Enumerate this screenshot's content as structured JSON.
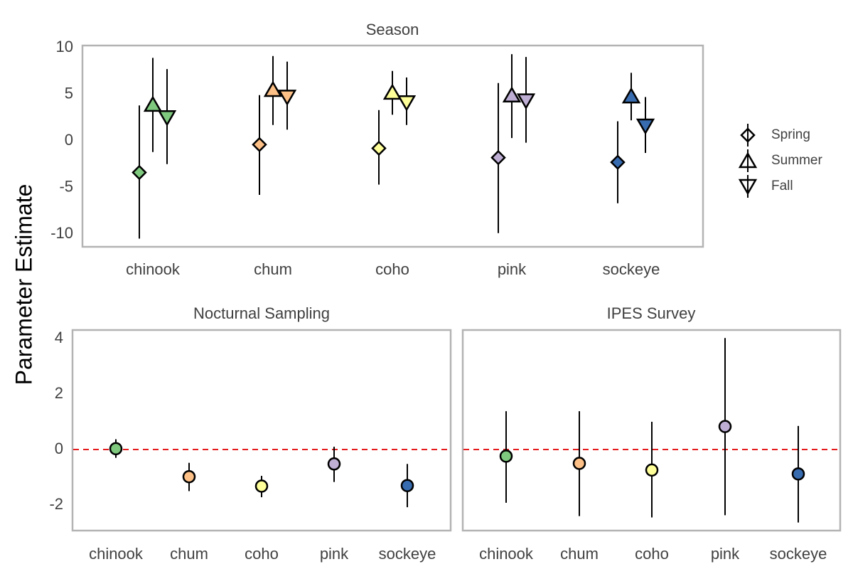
{
  "colors": {
    "chinook": "#7fc97f",
    "chum": "#fdc086",
    "coho": "#ffff99",
    "pink": "#beaed4",
    "sockeye": "#386cb0",
    "reference_line": "#e41a1c"
  },
  "ylabel": "Parameter Estimate",
  "legend": {
    "items": [
      "Spring",
      "Summer",
      "Fall"
    ]
  },
  "chart_data": [
    {
      "type": "scatter",
      "title": "Season",
      "categories": [
        "chinook",
        "chum",
        "coho",
        "pink",
        "sockeye"
      ],
      "ylim": [
        -11.5,
        10
      ],
      "yticks": [
        10,
        5,
        0,
        -5,
        -10
      ],
      "ytick_labels": [
        "10",
        "5",
        "0",
        "-5",
        "-10"
      ],
      "grid": false,
      "legend_position": "right",
      "series": [
        {
          "name": "Spring",
          "marker": "diamond",
          "values": [
            -3.4,
            -0.4,
            -0.8,
            -1.8,
            -2.3
          ],
          "lower": [
            -10.5,
            -5.8,
            -4.7,
            -9.9,
            -6.7
          ],
          "upper": [
            3.8,
            4.9,
            3.3,
            6.2,
            2.1
          ]
        },
        {
          "name": "Summer",
          "marker": "triangle-up",
          "values": [
            3.9,
            5.5,
            5.2,
            4.9,
            4.8
          ],
          "lower": [
            -1.2,
            1.7,
            2.8,
            0.3,
            2.2
          ],
          "upper": [
            8.9,
            9.1,
            7.5,
            9.3,
            7.3
          ]
        },
        {
          "name": "Fall",
          "marker": "triangle-down",
          "values": [
            2.5,
            4.7,
            4.1,
            4.3,
            1.6
          ],
          "lower": [
            -2.5,
            1.2,
            1.7,
            -0.2,
            -1.3
          ],
          "upper": [
            7.7,
            8.5,
            6.8,
            9.0,
            4.7
          ]
        }
      ]
    },
    {
      "type": "scatter",
      "title": "Nocturnal Sampling",
      "categories": [
        "chinook",
        "chum",
        "coho",
        "pink",
        "sockeye"
      ],
      "ylim": [
        -2.9,
        4.2
      ],
      "yticks": [
        4,
        2,
        0,
        -2
      ],
      "ytick_labels": [
        "4",
        "2",
        "0",
        "-2"
      ],
      "reference_line": 0,
      "values": [
        0.03,
        -0.98,
        -1.32,
        -0.52,
        -1.3
      ],
      "lower": [
        -0.3,
        -1.5,
        -1.72,
        -1.17,
        -2.08
      ],
      "upper": [
        0.37,
        -0.48,
        -0.95,
        0.1,
        -0.52
      ]
    },
    {
      "type": "scatter",
      "title": "IPES Survey",
      "categories": [
        "chinook",
        "chum",
        "coho",
        "pink",
        "sockeye"
      ],
      "ylim": [
        -2.9,
        4.2
      ],
      "reference_line": 0,
      "values": [
        -0.24,
        -0.5,
        -0.74,
        0.83,
        -0.88
      ],
      "lower": [
        -1.92,
        -2.4,
        -2.45,
        -2.37,
        -2.63
      ],
      "upper": [
        1.38,
        1.38,
        1.0,
        4.02,
        0.85
      ]
    }
  ]
}
